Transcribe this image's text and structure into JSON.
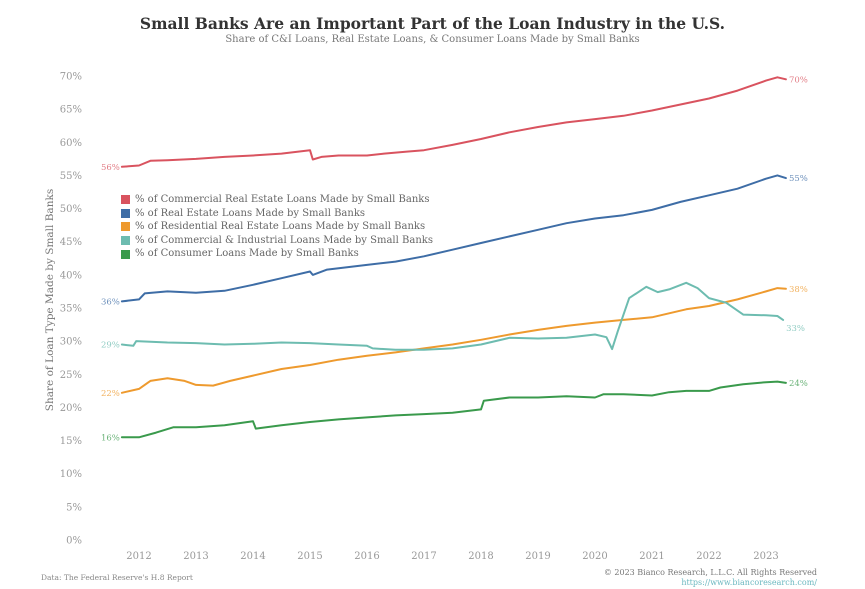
{
  "chart_data": {
    "type": "line",
    "title": "Small Banks Are an Important Part of the Loan Industry in the U.S.",
    "subtitle": "Share of C&I Loans, Real Estate Loans, & Consumer Loans Made by Small Banks",
    "xlabel": "",
    "ylabel": "Share of Loan Type Made by Small Banks",
    "xlim": [
      2011.55,
      2023.65
    ],
    "ylim": [
      0,
      70
    ],
    "grid": false,
    "legend_position": "center-left",
    "x_ticks": [
      {
        "value": 2012,
        "label": "2012"
      },
      {
        "value": 2013,
        "label": "2013"
      },
      {
        "value": 2014,
        "label": "2014"
      },
      {
        "value": 2015,
        "label": "2015"
      },
      {
        "value": 2016,
        "label": "2016"
      },
      {
        "value": 2017,
        "label": "2017"
      },
      {
        "value": 2018,
        "label": "2018"
      },
      {
        "value": 2019,
        "label": "2019"
      },
      {
        "value": 2020,
        "label": "2020"
      },
      {
        "value": 2021,
        "label": "2021"
      },
      {
        "value": 2022,
        "label": "2022"
      },
      {
        "value": 2023,
        "label": "2023"
      }
    ],
    "y_ticks": [
      {
        "value": 0,
        "label": "0%"
      },
      {
        "value": 5,
        "label": "5%"
      },
      {
        "value": 10,
        "label": "10%"
      },
      {
        "value": 15,
        "label": "15%"
      },
      {
        "value": 20,
        "label": "20%"
      },
      {
        "value": 25,
        "label": "25%"
      },
      {
        "value": 30,
        "label": "30%"
      },
      {
        "value": 35,
        "label": "35%"
      },
      {
        "value": 40,
        "label": "40%"
      },
      {
        "value": 45,
        "label": "45%"
      },
      {
        "value": 50,
        "label": "50%"
      },
      {
        "value": 55,
        "label": "55%"
      },
      {
        "value": 60,
        "label": "60%"
      },
      {
        "value": 65,
        "label": "65%"
      },
      {
        "value": 70,
        "label": "70%"
      }
    ],
    "series": [
      {
        "name": "% of Commercial Real Estate Loans Made by Small Banks",
        "color": "#d9535f",
        "start_label": "56%",
        "end_label": "70%",
        "x": [
          2011.7,
          2012.0,
          2012.2,
          2012.5,
          2013.0,
          2013.5,
          2014.0,
          2014.5,
          2015.0,
          2015.05,
          2015.2,
          2015.5,
          2016.0,
          2016.3,
          2016.7,
          2017.0,
          2017.5,
          2018.0,
          2018.5,
          2019.0,
          2019.5,
          2020.0,
          2020.5,
          2021.0,
          2021.5,
          2022.0,
          2022.5,
          2023.0,
          2023.2,
          2023.35
        ],
        "values": [
          56.3,
          56.5,
          57.2,
          57.3,
          57.5,
          57.8,
          58.0,
          58.3,
          58.8,
          57.4,
          57.8,
          58.0,
          58.0,
          58.3,
          58.6,
          58.8,
          59.6,
          60.5,
          61.5,
          62.3,
          63.0,
          63.5,
          64.0,
          64.8,
          65.7,
          66.6,
          67.8,
          69.3,
          69.8,
          69.5
        ]
      },
      {
        "name": "% of Real Estate Loans Made by Small Banks",
        "color": "#3e6da6",
        "start_label": "36%",
        "end_label": "55%",
        "x": [
          2011.7,
          2012.0,
          2012.1,
          2012.5,
          2013.0,
          2013.5,
          2014.0,
          2014.5,
          2015.0,
          2015.05,
          2015.3,
          2016.0,
          2016.5,
          2017.0,
          2017.5,
          2018.0,
          2018.5,
          2019.0,
          2019.5,
          2020.0,
          2020.5,
          2021.0,
          2021.5,
          2022.0,
          2022.5,
          2023.0,
          2023.2,
          2023.35
        ],
        "values": [
          36.0,
          36.3,
          37.2,
          37.5,
          37.3,
          37.6,
          38.5,
          39.5,
          40.5,
          40.0,
          40.8,
          41.5,
          42.0,
          42.8,
          43.8,
          44.8,
          45.8,
          46.8,
          47.8,
          48.5,
          49.0,
          49.8,
          51.0,
          52.0,
          53.0,
          54.5,
          55.0,
          54.6
        ]
      },
      {
        "name": "% of Residential Real Estate Loans Made by Small Banks",
        "color": "#ee9a2e",
        "start_label": "22%",
        "end_label": "38%",
        "x": [
          2011.7,
          2012.0,
          2012.2,
          2012.5,
          2012.8,
          2013.0,
          2013.3,
          2013.6,
          2014.0,
          2014.5,
          2015.0,
          2015.5,
          2016.0,
          2016.5,
          2017.0,
          2017.5,
          2018.0,
          2018.5,
          2019.0,
          2019.5,
          2020.0,
          2020.5,
          2021.0,
          2021.3,
          2021.6,
          2022.0,
          2022.5,
          2023.0,
          2023.2,
          2023.35
        ],
        "values": [
          22.2,
          22.8,
          24.0,
          24.4,
          24.0,
          23.4,
          23.3,
          24.0,
          24.8,
          25.8,
          26.4,
          27.2,
          27.8,
          28.3,
          28.9,
          29.5,
          30.2,
          31.0,
          31.7,
          32.3,
          32.8,
          33.2,
          33.6,
          34.2,
          34.8,
          35.3,
          36.3,
          37.5,
          38.0,
          37.9
        ]
      },
      {
        "name": "% of Commercial & Industrial Loans Made by Small Banks",
        "color": "#6dbcb0",
        "start_label": "29%",
        "end_label": "33%",
        "x": [
          2011.7,
          2011.9,
          2011.95,
          2012.5,
          2013.0,
          2013.5,
          2014.0,
          2014.5,
          2015.0,
          2015.5,
          2016.0,
          2016.1,
          2016.5,
          2017.0,
          2017.5,
          2018.0,
          2018.5,
          2019.0,
          2019.5,
          2020.0,
          2020.2,
          2020.3,
          2020.4,
          2020.6,
          2020.9,
          2021.1,
          2021.3,
          2021.6,
          2021.8,
          2022.0,
          2022.3,
          2022.6,
          2023.0,
          2023.2,
          2023.3
        ],
        "values": [
          29.5,
          29.3,
          30.0,
          29.8,
          29.7,
          29.5,
          29.6,
          29.8,
          29.7,
          29.5,
          29.3,
          28.9,
          28.7,
          28.7,
          28.9,
          29.5,
          30.5,
          30.4,
          30.5,
          31.0,
          30.6,
          28.8,
          31.5,
          36.5,
          38.2,
          37.4,
          37.8,
          38.8,
          38.0,
          36.5,
          35.8,
          34.0,
          33.9,
          33.8,
          33.2
        ]
      },
      {
        "name": "% of Consumer Loans Made by Small Banks",
        "color": "#3a9a4c",
        "start_label": "16%",
        "end_label": "24%",
        "x": [
          2011.7,
          2012.0,
          2012.3,
          2012.6,
          2013.0,
          2013.5,
          2014.0,
          2014.05,
          2014.5,
          2015.0,
          2015.5,
          2016.0,
          2016.5,
          2017.0,
          2017.5,
          2018.0,
          2018.05,
          2018.5,
          2019.0,
          2019.5,
          2020.0,
          2020.15,
          2020.5,
          2021.0,
          2021.3,
          2021.6,
          2022.0,
          2022.2,
          2022.6,
          2023.0,
          2023.2,
          2023.35
        ],
        "values": [
          15.5,
          15.5,
          16.2,
          17.0,
          17.0,
          17.3,
          17.9,
          16.8,
          17.3,
          17.8,
          18.2,
          18.5,
          18.8,
          19.0,
          19.2,
          19.7,
          21.0,
          21.5,
          21.5,
          21.7,
          21.5,
          22.0,
          22.0,
          21.8,
          22.3,
          22.5,
          22.5,
          23.0,
          23.5,
          23.8,
          23.9,
          23.7
        ]
      }
    ]
  },
  "footer": {
    "source": "Data: The Federal Reserve's H.8 Report",
    "copyright": "© 2023 Bianco Research, L.L.C. All Rights Reserved",
    "link": "https://www.biancoresearch.com/"
  }
}
